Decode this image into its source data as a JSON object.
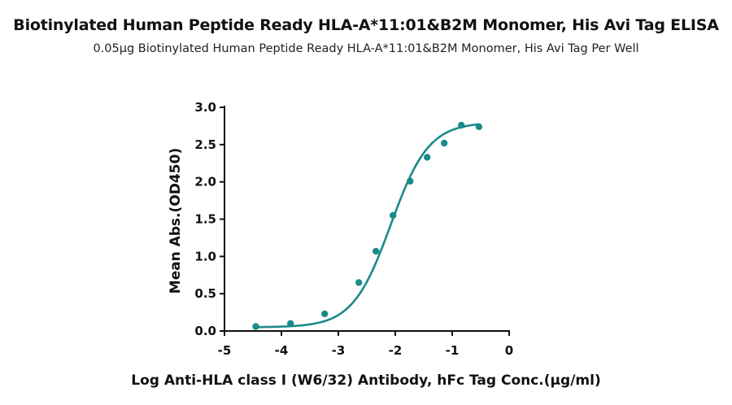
{
  "chart_data": {
    "type": "scatter",
    "title": "Biotinylated Human Peptide Ready HLA-A*11:01&B2M Monomer, His Avi Tag ELISA",
    "subtitle": "0.05μg Biotinylated Human Peptide Ready HLA-A*11:01&B2M Monomer, His Avi Tag Per Well",
    "xlabel": "Log Anti-HLA class I (W6/32) Antibody, hFc Tag Conc.(μg/ml)",
    "ylabel": "Mean Abs.(OD450)",
    "xlim": [
      -5,
      0
    ],
    "ylim": [
      0,
      3.0
    ],
    "xticks": [
      "-5",
      "-4",
      "-3",
      "-2",
      "-1",
      "0"
    ],
    "yticks": [
      "0.0",
      "0.5",
      "1.0",
      "1.5",
      "2.0",
      "2.5",
      "3.0"
    ],
    "grid": false,
    "legend": "none",
    "series": [
      {
        "x": [
          -4.45,
          -3.84,
          -3.24,
          -2.64,
          -2.34,
          -2.04,
          -1.74,
          -1.44,
          -1.14,
          -0.84,
          -0.53
        ],
        "y": [
          0.06,
          0.1,
          0.23,
          0.65,
          1.07,
          1.55,
          2.01,
          2.33,
          2.52,
          2.76,
          2.74
        ],
        "fit": "four-parameter logistic"
      }
    ],
    "fit_params": {
      "bottom": 0.05,
      "top": 2.8,
      "log_ec50": -2.08,
      "hill": 1.3
    },
    "color": "#1a8a8a"
  }
}
